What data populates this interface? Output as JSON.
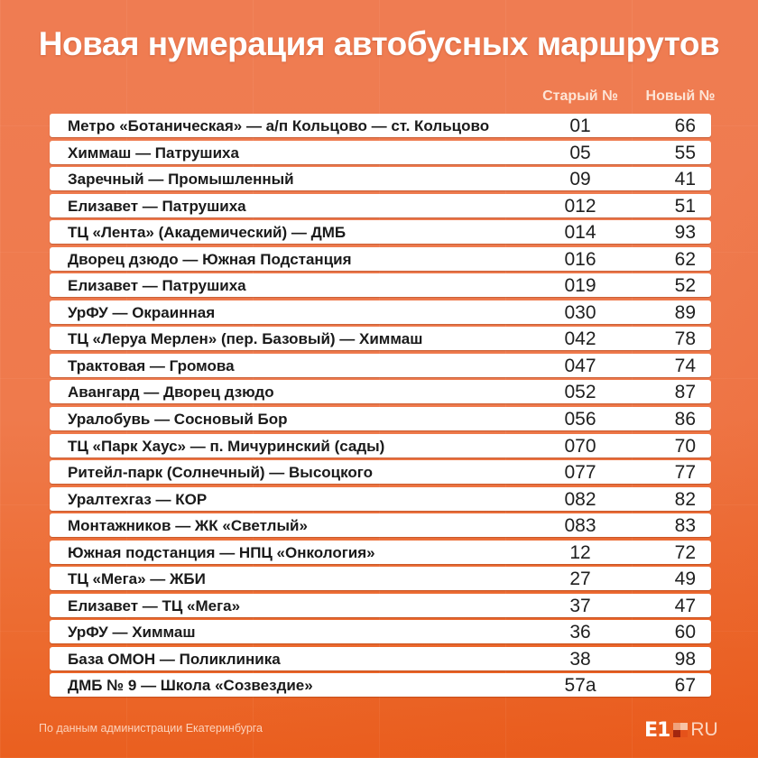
{
  "title": "Новая нумерация автобусных маршрутов",
  "columns": {
    "old": "Старый №",
    "new": "Новый №"
  },
  "routes": [
    {
      "route": "Метро «Ботаническая» — а/п Кольцово — ст. Кольцово",
      "old": "01",
      "new": "66"
    },
    {
      "route": "Химмаш — Патрушиха",
      "old": "05",
      "new": "55"
    },
    {
      "route": "Заречный — Промышленный",
      "old": "09",
      "new": "41"
    },
    {
      "route": "Елизавет — Патрушиха",
      "old": "012",
      "new": "51"
    },
    {
      "route": "ТЦ «Лента» (Академический) — ДМБ",
      "old": "014",
      "new": "93"
    },
    {
      "route": "Дворец дзюдо — Южная Подстанция",
      "old": "016",
      "new": "62"
    },
    {
      "route": "Елизавет — Патрушиха",
      "old": "019",
      "new": "52"
    },
    {
      "route": "УрФУ — Окраинная",
      "old": "030",
      "new": "89"
    },
    {
      "route": "ТЦ «Леруа Мерлен» (пер. Базовый) — Химмаш",
      "old": "042",
      "new": "78"
    },
    {
      "route": "Трактовая — Громова",
      "old": "047",
      "new": "74"
    },
    {
      "route": "Авангард — Дворец дзюдо",
      "old": "052",
      "new": "87"
    },
    {
      "route": "Уралобувь — Сосновый Бор",
      "old": "056",
      "new": "86"
    },
    {
      "route": "ТЦ «Парк Хаус» — п. Мичуринский (сады)",
      "old": "070",
      "new": "70"
    },
    {
      "route": "Ритейл-парк (Солнечный) — Высоцкого",
      "old": "077",
      "new": "77"
    },
    {
      "route": "Уралтехгаз — КОР",
      "old": "082",
      "new": "82"
    },
    {
      "route": "Монтажников — ЖК «Светлый»",
      "old": "083",
      "new": "83"
    },
    {
      "route": "Южная подстанция — НПЦ «Онкология»",
      "old": "12",
      "new": "72"
    },
    {
      "route": "ТЦ «Мега» — ЖБИ",
      "old": "27",
      "new": "49"
    },
    {
      "route": "Елизавет — ТЦ «Мега»",
      "old": "37",
      "new": "47"
    },
    {
      "route": "УрФУ — Химмаш",
      "old": "36",
      "new": "60"
    },
    {
      "route": "База ОМОН — Поликлиника",
      "old": "38",
      "new": "98"
    },
    {
      "route": "ДМБ № 9 — Школа «Созвездие»",
      "old": "57а",
      "new": "67"
    }
  ],
  "footer": {
    "source": "По данным администрации Екатеринбурга",
    "logo": {
      "main": "E1",
      "suffix": "RU"
    }
  },
  "colors": {
    "background_top": "#ef7c52",
    "background_bottom": "#ea5f1f",
    "row_background": "#ffffff",
    "header_text": "#fde5d6",
    "logo_squares": [
      "#f0a27c",
      "#f7c3a6",
      "#a3270f",
      "#e5521a"
    ]
  }
}
